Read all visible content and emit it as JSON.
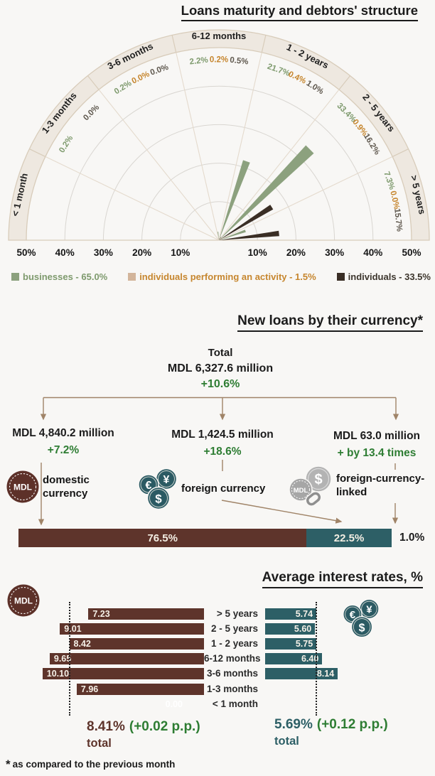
{
  "page": {
    "background": "#F8F7F5",
    "accent_green": "#2E7D33",
    "maroon": "#5E342B",
    "teal": "#2D5F66",
    "connector_color": "#A08468"
  },
  "section1": {
    "title": "Loans maturity and debtors' structure",
    "legend": [
      {
        "label": "businesses - 65.0%",
        "color": "#8CA17E",
        "text_color": "#7E9A6D"
      },
      {
        "label": "individuals performing an activity - 1.5%",
        "color": "#D3B59B",
        "text_color": "#C6862E"
      },
      {
        "label": "individuals - 33.5%",
        "color": "#3A2E25",
        "text_color": "#3C352C"
      }
    ]
  },
  "section2": {
    "title": "New loans by their currency*",
    "total": {
      "label": "Total",
      "amount": "MDL 6,327.6 million",
      "change": "+10.6%"
    },
    "branches": [
      {
        "amount": "MDL 4,840.2 million",
        "change": "+7.2%",
        "label": "domestic currency",
        "icon": "mdl-coin"
      },
      {
        "amount": "MDL 1,424.5 million",
        "change": "+18.6%",
        "label": "foreign currency",
        "icon": "eur-yen-usd-coins"
      },
      {
        "amount": "MDL 63.0 million",
        "change": "+ by 13.4 times",
        "label": "foreign-currency-linked",
        "icon": "mdl-usd-linked-coins"
      }
    ]
  },
  "section3": {
    "title": "Average interest rates, %",
    "totals": {
      "left": {
        "value": "8.41%",
        "change": "(+0.02 p.p.)",
        "label": "total"
      },
      "right": {
        "value": "5.69%",
        "change": "(+0.12 p.p.)",
        "label": "total"
      }
    }
  },
  "footnote": {
    "star": "*",
    "text": "as compared to the previous month"
  },
  "chart_data": [
    {
      "type": "polar-fan",
      "title": "Loans maturity and debtors' structure",
      "unit": "%",
      "rmax": 50,
      "axis_ticks": [
        10,
        20,
        30,
        40,
        50
      ],
      "sectors": [
        "< 1 month",
        "1-3 months",
        "3-6 months",
        "6-12 months",
        "1 - 2 years",
        "2 - 5 years",
        "> 5 years"
      ],
      "series": [
        {
          "name": "businesses",
          "total": 65.0,
          "color": "#8CA17E",
          "label_color": "#7E9A6D",
          "values": [
            null,
            0.2,
            0.2,
            2.2,
            21.7,
            33.4,
            7.3
          ]
        },
        {
          "name": "individuals performing an activity",
          "total": 1.5,
          "color": "#D3B59B",
          "label_color": "#C6862E",
          "values": [
            null,
            null,
            0.0,
            0.2,
            0.4,
            0.9,
            0.0
          ]
        },
        {
          "name": "individuals",
          "total": 33.5,
          "color": "#3A2E25",
          "label_color": "#5F584E",
          "values": [
            null,
            0.0,
            0.0,
            0.5,
            1.0,
            16.2,
            15.7
          ]
        }
      ]
    },
    {
      "type": "tornado-bar",
      "title": "Average interest rates, %",
      "unit": "%",
      "categories": [
        "> 5 years",
        "2 - 5 years",
        "1 - 2 years",
        "6-12 months",
        "3-6 months",
        "1-3 months",
        "< 1 month"
      ],
      "series": [
        {
          "name": "MDL",
          "color": "#5E342B",
          "total": 8.41,
          "values": [
            7.23,
            9.01,
            8.42,
            9.65,
            10.1,
            7.96,
            0.0
          ]
        },
        {
          "name": "foreign currency",
          "color": "#2D5F66",
          "total": 5.69,
          "values": [
            5.74,
            5.6,
            5.75,
            6.4,
            8.14,
            null,
            null
          ]
        }
      ]
    },
    {
      "type": "stacked-bar",
      "title": "New loans by their currency",
      "unit": "%",
      "segments": [
        {
          "label": "76.5%",
          "value": 76.5,
          "color": "#5E342B",
          "outside": false
        },
        {
          "label": "22.5%",
          "value": 22.5,
          "color": "#2D5F66",
          "outside": false
        },
        {
          "label": "1.0%",
          "value": 1.0,
          "color": "transparent",
          "outside": true
        }
      ]
    }
  ]
}
